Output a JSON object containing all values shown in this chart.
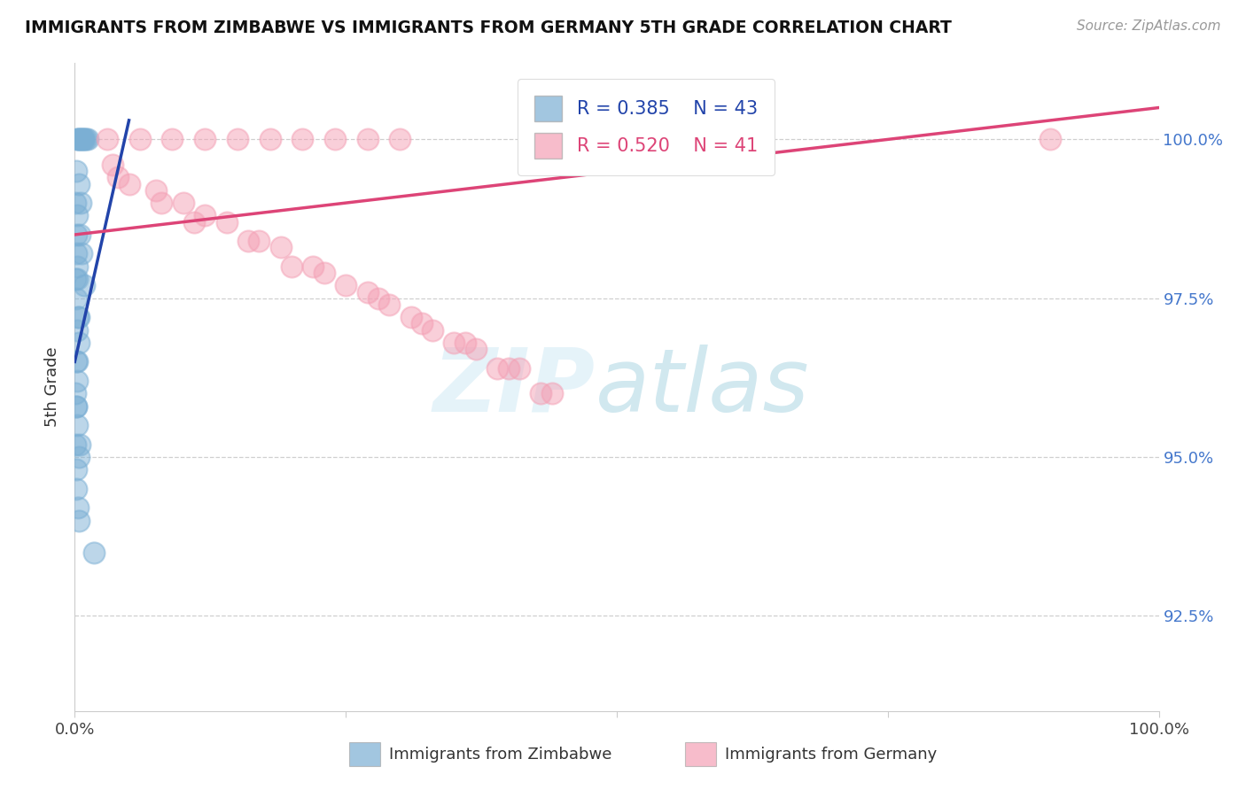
{
  "title": "IMMIGRANTS FROM ZIMBABWE VS IMMIGRANTS FROM GERMANY 5TH GRADE CORRELATION CHART",
  "source": "Source: ZipAtlas.com",
  "ylabel": "5th Grade",
  "xlim": [
    0,
    100
  ],
  "ylim": [
    91.0,
    101.2
  ],
  "yticks": [
    92.5,
    95.0,
    97.5,
    100.0
  ],
  "ytick_labels": [
    "92.5%",
    "95.0%",
    "97.5%",
    "100.0%"
  ],
  "legend_r_zimbabwe": "R = 0.385",
  "legend_n_zimbabwe": "N = 43",
  "legend_r_germany": "R = 0.520",
  "legend_n_germany": "N = 41",
  "zimbabwe_color": "#7bafd4",
  "germany_color": "#f4a0b5",
  "trendline_zimbabwe_color": "#2244aa",
  "trendline_germany_color": "#dd4477",
  "zimbabwe_x": [
    0.2,
    0.4,
    0.6,
    0.8,
    1.0,
    1.2,
    0.3,
    0.5,
    0.7,
    0.9,
    0.15,
    0.35,
    0.55,
    0.25,
    0.45,
    0.1,
    0.2,
    0.05,
    0.15,
    0.3,
    0.2,
    0.4,
    0.1,
    0.25,
    0.05,
    0.1,
    0.2,
    0.5,
    0.35,
    0.15,
    0.1,
    0.3,
    0.4,
    0.05,
    0.15,
    0.25,
    0.35,
    0.2,
    0.1,
    0.08,
    0.6,
    0.9,
    1.8
  ],
  "zimbabwe_y": [
    100.0,
    100.0,
    100.0,
    100.0,
    100.0,
    100.0,
    100.0,
    100.0,
    100.0,
    100.0,
    99.5,
    99.3,
    99.0,
    98.8,
    98.5,
    98.2,
    98.0,
    97.8,
    97.5,
    97.2,
    97.0,
    96.8,
    96.5,
    96.2,
    96.0,
    95.8,
    95.5,
    95.2,
    95.0,
    94.8,
    94.5,
    94.2,
    94.0,
    99.0,
    98.5,
    97.8,
    97.2,
    96.5,
    95.8,
    95.2,
    98.2,
    97.7,
    93.5
  ],
  "germany_x": [
    3.0,
    6.0,
    9.0,
    12.0,
    15.0,
    18.0,
    21.0,
    24.0,
    27.0,
    30.0,
    4.0,
    8.0,
    11.0,
    16.0,
    20.0,
    25.0,
    29.0,
    33.0,
    37.0,
    41.0,
    5.0,
    10.0,
    14.0,
    19.0,
    23.0,
    28.0,
    32.0,
    36.0,
    40.0,
    44.0,
    3.5,
    7.5,
    12.0,
    17.0,
    22.0,
    27.0,
    31.0,
    35.0,
    39.0,
    43.0,
    90.0
  ],
  "germany_y": [
    100.0,
    100.0,
    100.0,
    100.0,
    100.0,
    100.0,
    100.0,
    100.0,
    100.0,
    100.0,
    99.4,
    99.0,
    98.7,
    98.4,
    98.0,
    97.7,
    97.4,
    97.0,
    96.7,
    96.4,
    99.3,
    99.0,
    98.7,
    98.3,
    97.9,
    97.5,
    97.1,
    96.8,
    96.4,
    96.0,
    99.6,
    99.2,
    98.8,
    98.4,
    98.0,
    97.6,
    97.2,
    96.8,
    96.4,
    96.0,
    100.0
  ],
  "trendline_zim_x0": 0,
  "trendline_zim_y0": 96.5,
  "trendline_zim_x1": 5,
  "trendline_zim_y1": 100.3,
  "trendline_ger_x0": 0,
  "trendline_ger_y0": 98.5,
  "trendline_ger_x1": 100,
  "trendline_ger_y1": 100.5
}
